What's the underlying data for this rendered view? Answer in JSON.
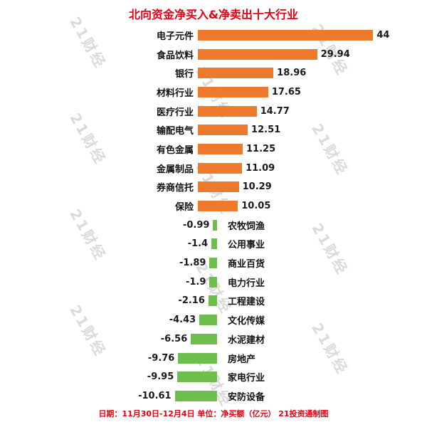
{
  "title": "北向资金净买入&净卖出十大行业",
  "footer": "日期：11月30日-12月4日 单位：净买额（亿元） 21投资通制图",
  "watermark_text": "21财经",
  "colors": {
    "positive_bar": "#ee7b2d",
    "negative_bar": "#6cbf4c",
    "title_text": "#e60012",
    "footer_text": "#e60012",
    "watermark": "#bdbdbd",
    "value_text": "#1a1a1a",
    "label_text": "#111111"
  },
  "chart_data": {
    "type": "bar",
    "orientation": "horizontal",
    "title": "北向资金净买入&净卖出十大行业",
    "xlabel": "净买额（亿元）",
    "ylabel": "",
    "xlim": [
      -12,
      46
    ],
    "grid": false,
    "legend": false,
    "categories": [
      "电子元件",
      "食品饮料",
      "银行",
      "材料行业",
      "医疗行业",
      "输配电气",
      "有色金属",
      "金属制品",
      "券商信托",
      "保险",
      "农牧饲渔",
      "公用事业",
      "商业百货",
      "电力行业",
      "工程建设",
      "文化传媒",
      "水泥建材",
      "房地产",
      "家电行业",
      "安防设备"
    ],
    "values": [
      44,
      29.94,
      18.96,
      17.65,
      14.77,
      12.51,
      11.25,
      11.09,
      10.29,
      10.05,
      -0.99,
      -1.4,
      -1.89,
      -1.9,
      -2.16,
      -4.43,
      -6.56,
      -9.76,
      -9.95,
      -10.61
    ],
    "value_labels": [
      "44",
      "29.94",
      "18.96",
      "17.65",
      "14.77",
      "12.51",
      "11.25",
      "11.09",
      "10.29",
      "10.05",
      "-0.99",
      "-1.4",
      "-1.89",
      "-1.9",
      "-2.16",
      "-4.43",
      "-6.56",
      "-9.76",
      "-9.95",
      "-10.61"
    ]
  }
}
